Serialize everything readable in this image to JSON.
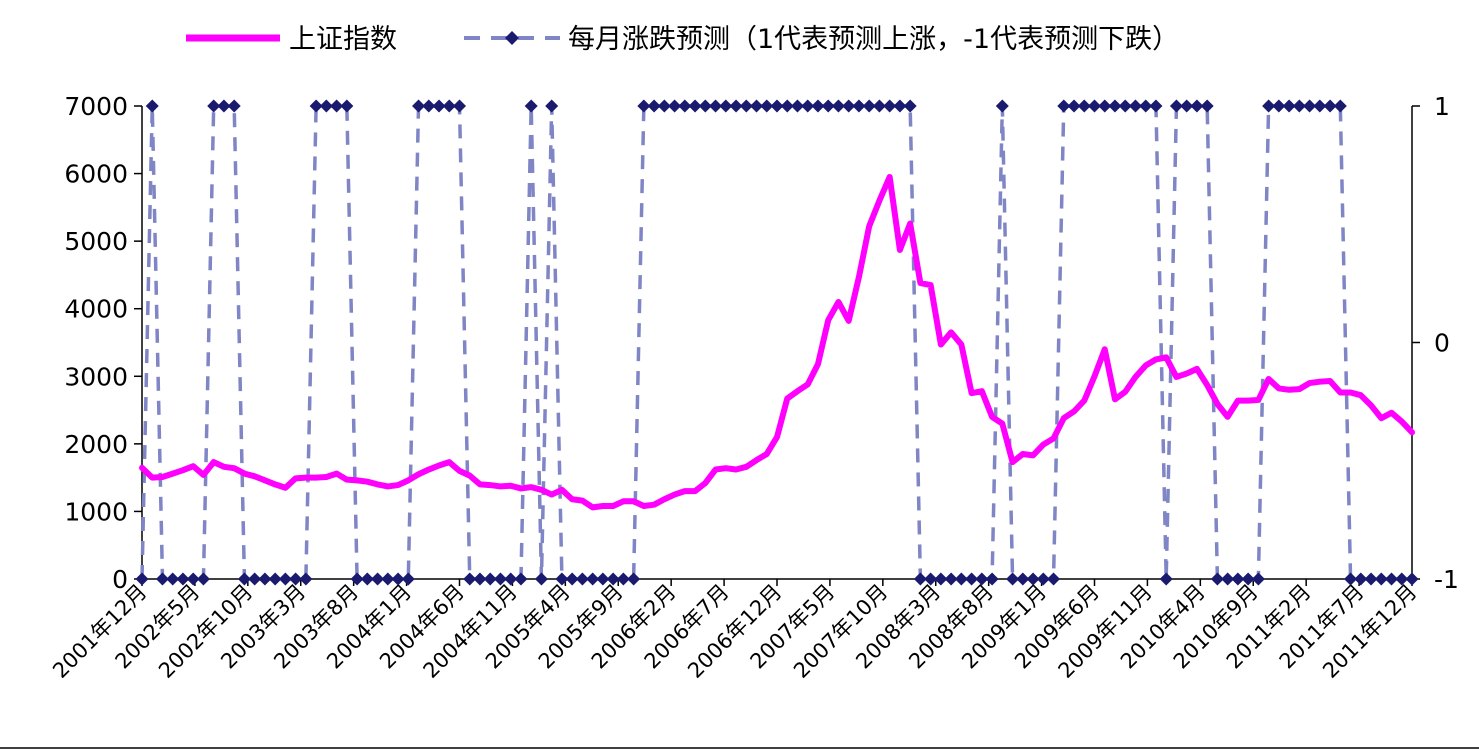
{
  "chart_data": {
    "type": "line",
    "title": "",
    "xlabel": "",
    "ylabel": "",
    "ylim": [
      0,
      7000
    ],
    "y2lim": [
      -1,
      1
    ],
    "y_ticks": [
      "0",
      "1000",
      "2000",
      "3000",
      "4000",
      "5000",
      "6000",
      "7000"
    ],
    "y2_ticks": [
      "-1",
      "0",
      "1"
    ],
    "x_tick_labels": [
      "2001年12月",
      "2002年5月",
      "2002年10月",
      "2003年3月",
      "2003年8月",
      "2004年1月",
      "2004年6月",
      "2004年11月",
      "2005年4月",
      "2005年9月",
      "2006年2月",
      "2006年7月",
      "2006年12月",
      "2007年5月",
      "2007年10月",
      "2008年3月",
      "2008年8月",
      "2009年1月",
      "2009年6月",
      "2009年11月",
      "2010年4月",
      "2010年9月",
      "2011年2月",
      "2011年7月",
      "2011年12月"
    ],
    "legend_position": "top",
    "series": [
      {
        "name": "上证指数",
        "axis": "left",
        "color": "#ff00ff",
        "style": "solid",
        "values": [
          1646,
          1500,
          1510,
          1560,
          1610,
          1670,
          1540,
          1730,
          1660,
          1640,
          1560,
          1520,
          1460,
          1400,
          1350,
          1490,
          1500,
          1500,
          1510,
          1560,
          1470,
          1460,
          1440,
          1400,
          1370,
          1390,
          1460,
          1550,
          1620,
          1680,
          1730,
          1600,
          1530,
          1400,
          1390,
          1370,
          1380,
          1340,
          1360,
          1320,
          1250,
          1320,
          1180,
          1160,
          1060,
          1080,
          1080,
          1150,
          1150,
          1080,
          1100,
          1180,
          1250,
          1300,
          1300,
          1420,
          1620,
          1640,
          1620,
          1660,
          1760,
          1850,
          2100,
          2670,
          2780,
          2880,
          3180,
          3830,
          4100,
          3820,
          4470,
          5220,
          5600,
          5950,
          4870,
          5260,
          4380,
          4350,
          3470,
          3650,
          3470,
          2750,
          2780,
          2400,
          2300,
          1730,
          1850,
          1830,
          1990,
          2080,
          2380,
          2480,
          2640,
          3000,
          3400,
          2660,
          2770,
          2990,
          3160,
          3250,
          3280,
          2990,
          3040,
          3110,
          2870,
          2590,
          2400,
          2640,
          2640,
          2650,
          2960,
          2820,
          2800,
          2810,
          2900,
          2920,
          2930,
          2760,
          2760,
          2720,
          2570,
          2380,
          2460,
          2330,
          2170
        ]
      },
      {
        "name": "每月涨跌预测（1代表预测上涨，-1代表预测下跌）",
        "axis": "right",
        "color": "#1a1a6e",
        "line_color": "#7f85c5",
        "style": "dashed",
        "values": [
          -1,
          1,
          -1,
          -1,
          -1,
          -1,
          -1,
          1,
          1,
          1,
          -1,
          -1,
          -1,
          -1,
          -1,
          -1,
          -1,
          1,
          1,
          1,
          1,
          -1,
          -1,
          -1,
          -1,
          -1,
          -1,
          1,
          1,
          1,
          1,
          1,
          -1,
          -1,
          -1,
          -1,
          -1,
          -1,
          1,
          -1,
          1,
          -1,
          -1,
          -1,
          -1,
          -1,
          -1,
          -1,
          -1,
          1,
          1,
          1,
          1,
          1,
          1,
          1,
          1,
          1,
          1,
          1,
          1,
          1,
          1,
          1,
          1,
          1,
          1,
          1,
          1,
          1,
          1,
          1,
          1,
          1,
          1,
          1,
          -1,
          -1,
          -1,
          -1,
          -1,
          -1,
          -1,
          -1,
          1,
          -1,
          -1,
          -1,
          -1,
          -1,
          1,
          1,
          1,
          1,
          1,
          1,
          1,
          1,
          1,
          1,
          -1,
          1,
          1,
          1,
          1,
          -1,
          -1,
          -1,
          -1,
          -1,
          1,
          1,
          1,
          1,
          1,
          1,
          1,
          1,
          -1,
          -1,
          -1,
          -1,
          -1,
          -1,
          -1
        ]
      }
    ]
  }
}
